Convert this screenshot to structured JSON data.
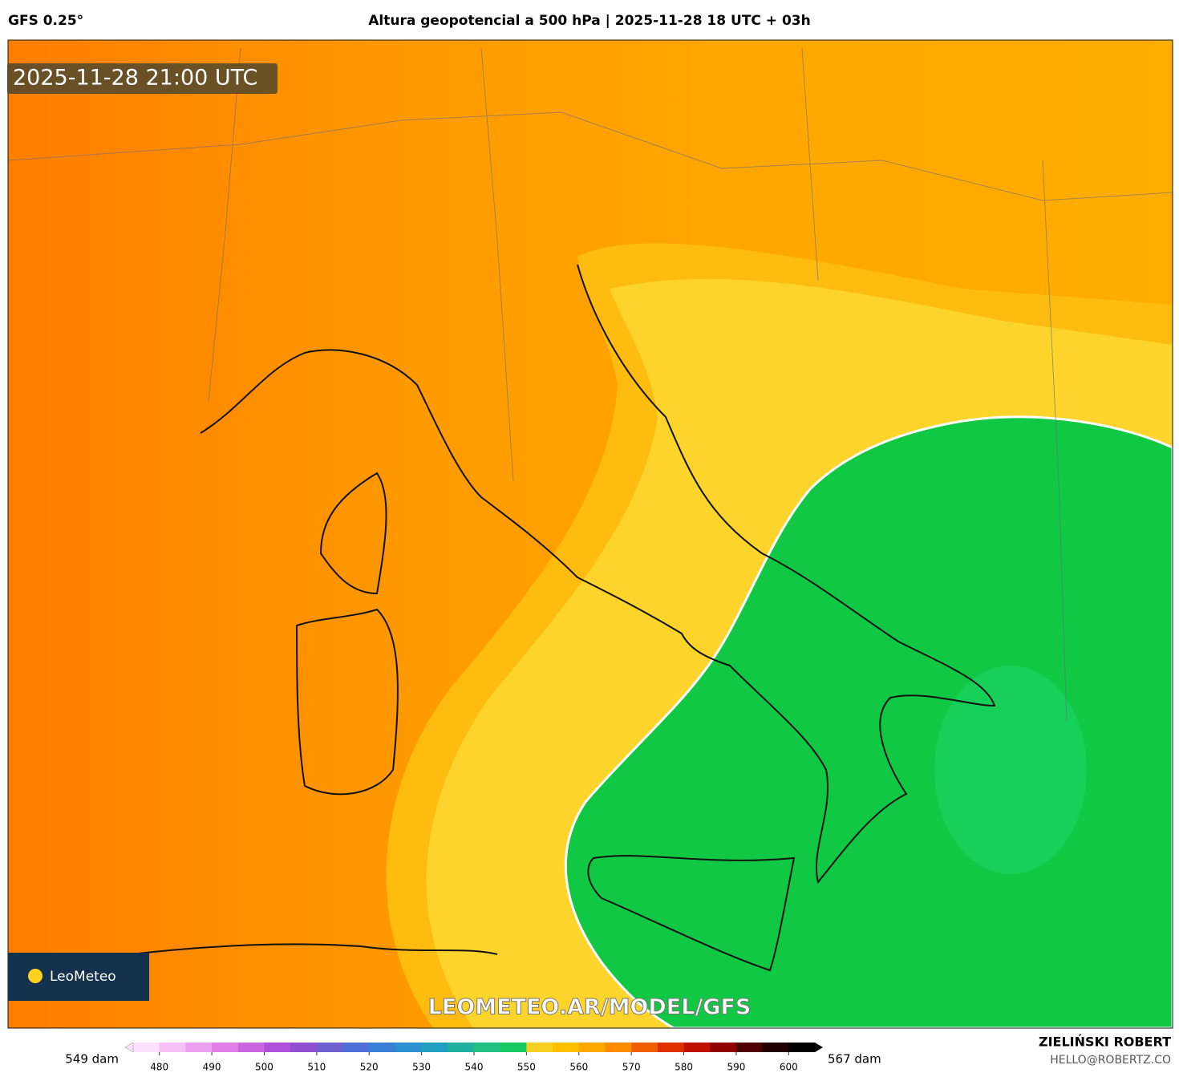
{
  "header": {
    "model": "GFS 0.25°",
    "title": "Altura geopotencial a 500 hPa | 2025-11-28 18 UTC + 03h"
  },
  "map": {
    "valid_time": "2025-11-28 21:00 UTC",
    "logo": "LeoMeteo",
    "watermark": "LEOMETEO.AR/MODEL/GFS"
  },
  "colorbar": {
    "min_label": "549 dam",
    "max_label": "567 dam",
    "lim": [
      475,
      605
    ],
    "ticks": [
      480,
      490,
      500,
      510,
      520,
      530,
      540,
      550,
      560,
      570,
      580,
      590,
      600
    ],
    "colors": [
      "#ffe0ff",
      "#f8c0f8",
      "#eea0f0",
      "#e080e8",
      "#cc66e0",
      "#b050d8",
      "#9050d0",
      "#7060d0",
      "#5070d8",
      "#3a80d8",
      "#2a90d0",
      "#20a0c0",
      "#20b0a0",
      "#20c080",
      "#18c860",
      "#f8d020",
      "#ffc000",
      "#ffa800",
      "#ff8c00",
      "#f06000",
      "#e03000",
      "#c01000",
      "#900000",
      "#500000",
      "#200000",
      "#000000"
    ]
  },
  "footer": {
    "author": "ZIELIŃSKI ROBERT",
    "email": "HELLO@ROBERTZ.CO"
  }
}
